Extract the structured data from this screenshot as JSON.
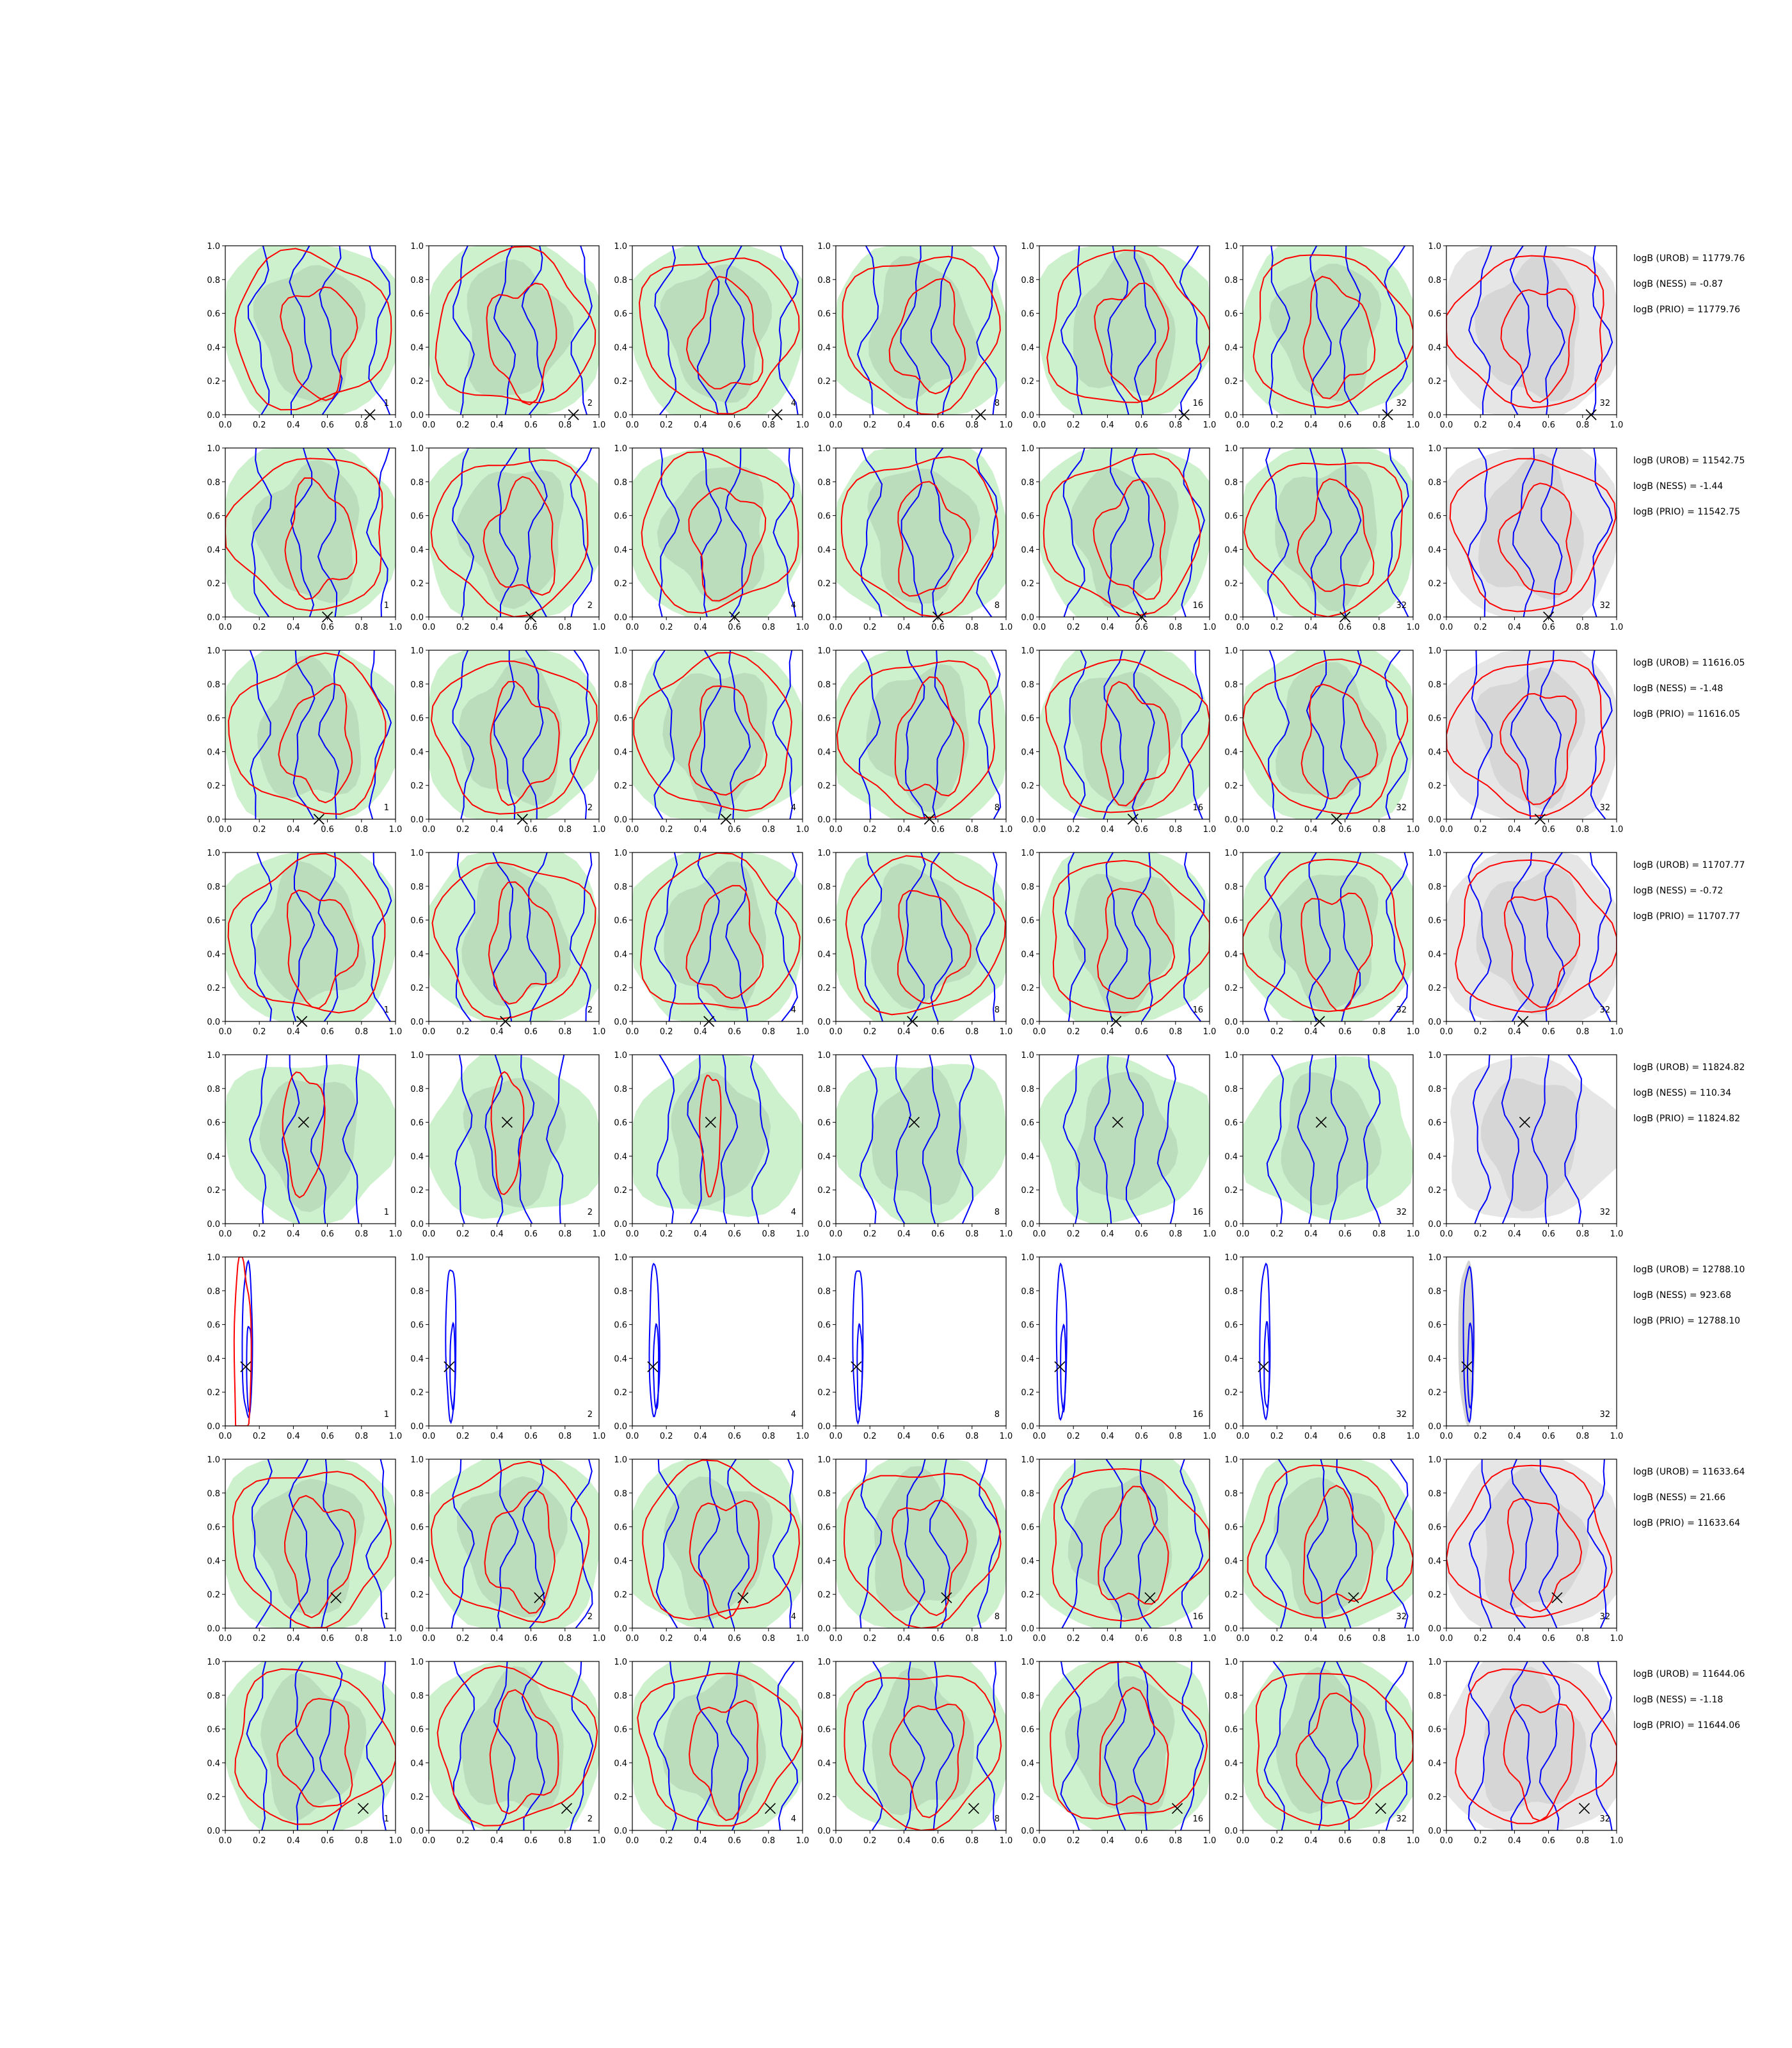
{
  "chart_data": {
    "type": "contour",
    "description_fields": "grid of 8 rows x 7 panels of 2D density contour plots",
    "xlim": [
      0,
      1
    ],
    "ylim": [
      0,
      1
    ],
    "ticks": [
      "0.0",
      "0.2",
      "0.4",
      "0.6",
      "0.8",
      "1.0"
    ],
    "column_labels": [
      "1",
      "2",
      "4",
      "8",
      "16",
      "32",
      "32"
    ],
    "colors": {
      "red_contour": "#ff0000",
      "blue_contour": "#0000ff",
      "green_fill_light": "#cdf0cd",
      "green_fill_dark": "#b8d8b8",
      "gray_fill_light": "#e6e6e6",
      "gray_fill_dark": "#d2d2d2",
      "marker": "#000000"
    },
    "rows": [
      {
        "marker": [
          0.85,
          0.0
        ],
        "stats": [
          "logB (UROB) = 11779.76",
          "logB (NESS) = -0.87",
          "logB (PRIO) = 11779.76"
        ],
        "mode": "spread"
      },
      {
        "marker": [
          0.6,
          0.0
        ],
        "stats": [
          "logB (UROB) = 11542.75",
          "logB (NESS) = -1.44",
          "logB (PRIO) = 11542.75"
        ],
        "mode": "spread"
      },
      {
        "marker": [
          0.55,
          0.0
        ],
        "stats": [
          "logB (UROB) = 11616.05",
          "logB (NESS) = -1.48",
          "logB (PRIO) = 11616.05"
        ],
        "mode": "spread"
      },
      {
        "marker": [
          0.45,
          0.0
        ],
        "stats": [
          "logB (UROB) = 11707.77",
          "logB (NESS) = -0.72",
          "logB (PRIO) = 11707.77"
        ],
        "mode": "spread"
      },
      {
        "marker": [
          0.46,
          0.6
        ],
        "stats": [
          "logB (UROB) = 11824.82",
          "logB (NESS) = 110.34",
          "logB (PRIO) = 11824.82"
        ],
        "mode": "centered"
      },
      {
        "marker": [
          0.12,
          0.35
        ],
        "stats": [
          "logB (UROB) = 12788.10",
          "logB (NESS) = 923.68",
          "logB (PRIO) = 12788.10"
        ],
        "mode": "narrow"
      },
      {
        "marker": [
          0.65,
          0.18
        ],
        "stats": [
          "logB (UROB) = 11633.64",
          "logB (NESS) = 21.66",
          "logB (PRIO) = 11633.64"
        ],
        "mode": "spread"
      },
      {
        "marker": [
          0.81,
          0.13
        ],
        "stats": [
          "logB (UROB) = 11644.06",
          "logB (NESS) = -1.18",
          "logB (PRIO) = 11644.06"
        ],
        "mode": "spread"
      }
    ]
  }
}
